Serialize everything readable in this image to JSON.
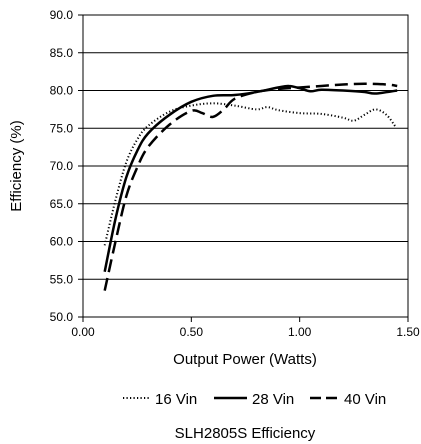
{
  "chart_data": {
    "type": "line",
    "title": "SLH2805S Efficiency",
    "xlabel": "Output Power (Watts)",
    "ylabel": "Efficiency (%)",
    "xlim": [
      0,
      1.5
    ],
    "ylim": [
      50,
      90
    ],
    "x_ticks": [
      "0.00",
      "0.50",
      "1.00",
      "1.50"
    ],
    "y_ticks": [
      "50.0",
      "55.0",
      "60.0",
      "65.0",
      "70.0",
      "75.0",
      "80.0",
      "85.0",
      "90.0"
    ],
    "grid": "horizontal",
    "legend_position": "bottom",
    "series": [
      {
        "name": "16 Vin",
        "style": "dotted",
        "color": "#000000",
        "points": [
          [
            0.1,
            59.5
          ],
          [
            0.15,
            65.5
          ],
          [
            0.2,
            70.5
          ],
          [
            0.25,
            73.5
          ],
          [
            0.3,
            75.3
          ],
          [
            0.4,
            77.2
          ],
          [
            0.5,
            78.0
          ],
          [
            0.6,
            78.3
          ],
          [
            0.7,
            78.0
          ],
          [
            0.8,
            77.5
          ],
          [
            0.85,
            77.8
          ],
          [
            0.9,
            77.4
          ],
          [
            1.0,
            77.0
          ],
          [
            1.1,
            76.9
          ],
          [
            1.2,
            76.4
          ],
          [
            1.25,
            76.0
          ],
          [
            1.3,
            76.8
          ],
          [
            1.35,
            77.5
          ],
          [
            1.4,
            76.8
          ],
          [
            1.44,
            75.3
          ]
        ]
      },
      {
        "name": "28 Vin",
        "style": "solid",
        "color": "#000000",
        "points": [
          [
            0.1,
            56.0
          ],
          [
            0.15,
            63.0
          ],
          [
            0.2,
            68.5
          ],
          [
            0.25,
            72.0
          ],
          [
            0.3,
            74.3
          ],
          [
            0.4,
            76.8
          ],
          [
            0.5,
            78.5
          ],
          [
            0.6,
            79.3
          ],
          [
            0.7,
            79.4
          ],
          [
            0.8,
            79.8
          ],
          [
            0.9,
            80.4
          ],
          [
            0.95,
            80.6
          ],
          [
            1.0,
            80.3
          ],
          [
            1.05,
            79.9
          ],
          [
            1.1,
            80.1
          ],
          [
            1.2,
            80.0
          ],
          [
            1.3,
            79.8
          ],
          [
            1.35,
            79.6
          ],
          [
            1.45,
            80.0
          ]
        ]
      },
      {
        "name": "40 Vin",
        "style": "dashed",
        "color": "#000000",
        "points": [
          [
            0.1,
            53.5
          ],
          [
            0.15,
            60.0
          ],
          [
            0.2,
            66.0
          ],
          [
            0.25,
            69.8
          ],
          [
            0.3,
            72.5
          ],
          [
            0.4,
            75.5
          ],
          [
            0.5,
            77.3
          ],
          [
            0.55,
            77.0
          ],
          [
            0.6,
            76.5
          ],
          [
            0.65,
            77.5
          ],
          [
            0.7,
            78.9
          ],
          [
            0.8,
            79.8
          ],
          [
            0.9,
            80.2
          ],
          [
            1.0,
            80.4
          ],
          [
            1.1,
            80.6
          ],
          [
            1.2,
            80.8
          ],
          [
            1.3,
            80.9
          ],
          [
            1.4,
            80.8
          ],
          [
            1.45,
            80.6
          ]
        ]
      }
    ]
  }
}
